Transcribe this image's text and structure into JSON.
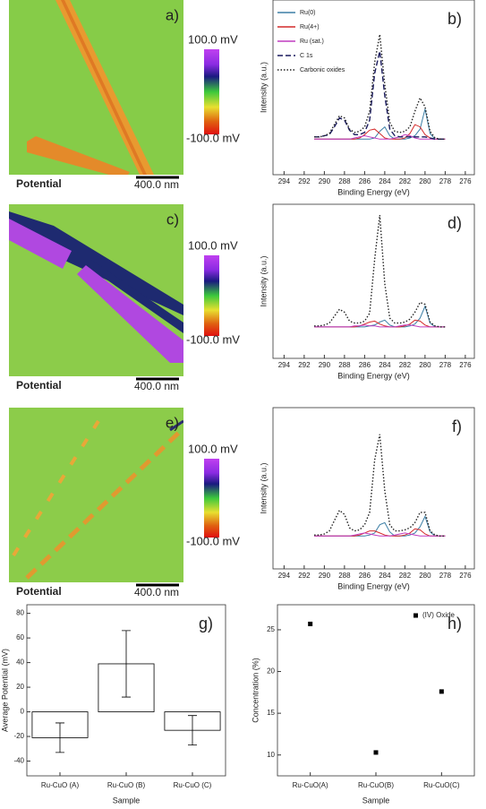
{
  "images": [
    {
      "label": "a)",
      "caption": "Potential",
      "scale_bar": "400.0 nm",
      "colorbar_max": "100.0 mV",
      "colorbar_min": "-100.0 mV"
    },
    {
      "label": "c)",
      "caption": "Potential",
      "scale_bar": "400.0 nm",
      "colorbar_max": "100.0 mV",
      "colorbar_min": "-100.0 mV"
    },
    {
      "label": "e)",
      "caption": "Potential",
      "scale_bar": "400.0 nm",
      "colorbar_max": "100.0 mV",
      "colorbar_min": "-100.0 mV"
    }
  ],
  "chart_data": [
    {
      "type": "line",
      "title": "b)",
      "x_label": "Binding Energy (eV)",
      "y_label": "Intensity (a.u.)",
      "x": [
        291,
        290.5,
        290,
        289.5,
        289,
        288.5,
        288,
        287.5,
        287,
        286.5,
        286,
        285.5,
        285,
        284.5,
        284,
        283.5,
        283,
        282.5,
        282,
        281.5,
        281,
        280.5,
        280,
        279.5,
        279,
        278.5,
        278
      ],
      "xlim": [
        295.1,
        275.1
      ],
      "xticks": [
        294,
        292,
        290,
        288,
        286,
        284,
        282,
        280,
        278,
        276
      ],
      "ylim": [
        -31,
        126
      ],
      "legend": "upper left",
      "series": [
        {
          "name": "Ru(0)",
          "color": "#3c7fa6",
          "style": "solid",
          "values": [
            1,
            1,
            1,
            1,
            1,
            1,
            1,
            1,
            1,
            1,
            1,
            1,
            2,
            8,
            12,
            4,
            1,
            1,
            1,
            2,
            4,
            10,
            28,
            6,
            1,
            1,
            1
          ]
        },
        {
          "name": "Ru(4+)",
          "color": "#d42a2a",
          "style": "solid",
          "values": [
            1,
            1,
            1,
            1,
            1,
            1,
            1,
            1,
            1,
            2,
            5,
            9,
            10,
            6,
            2,
            1,
            1,
            1,
            2,
            6,
            14,
            12,
            5,
            2,
            1,
            1,
            1
          ]
        },
        {
          "name": "Ru (sat.)",
          "color": "#c03cc0",
          "style": "solid",
          "values": [
            1,
            1,
            1,
            1,
            1,
            1,
            1,
            1,
            2,
            3,
            4,
            3,
            2,
            1,
            1,
            1,
            2,
            3,
            5,
            4,
            2,
            1,
            1,
            1,
            1,
            1,
            1
          ]
        },
        {
          "name": "C 1s",
          "color": "#1a1a5e",
          "style": "dashed",
          "values": [
            3,
            3,
            4,
            5,
            12,
            20,
            18,
            9,
            5,
            5,
            7,
            18,
            60,
            80,
            40,
            10,
            4,
            3,
            3,
            3,
            3,
            3,
            3,
            2,
            1,
            1,
            1
          ]
        },
        {
          "name": "Carbonic oxides",
          "color": "#222222",
          "style": "dotted",
          "values": [
            3,
            3,
            4,
            6,
            14,
            22,
            20,
            10,
            7,
            8,
            12,
            26,
            70,
            95,
            50,
            16,
            8,
            7,
            8,
            12,
            26,
            38,
            30,
            8,
            2,
            1,
            1
          ]
        }
      ]
    },
    {
      "type": "line",
      "title": "d)",
      "x_label": "Binding Energy (eV)",
      "y_label": "Intensity (a.u.)",
      "x": [
        291,
        290.5,
        290,
        289.5,
        289,
        288.5,
        288,
        287.5,
        287,
        286.5,
        286,
        285.5,
        285,
        284.5,
        284,
        283.5,
        283,
        282.5,
        282,
        281.5,
        281,
        280.5,
        280,
        279.5,
        279,
        278.5,
        278
      ],
      "xlim": [
        295.1,
        275.1
      ],
      "xticks": [
        294,
        292,
        290,
        288,
        286,
        284,
        282,
        280,
        278,
        276
      ],
      "ylim": [
        -31,
        126
      ],
      "series": [
        {
          "color": "#3c7fa6",
          "style": "solid",
          "values": [
            1,
            1,
            1,
            1,
            1,
            1,
            1,
            1,
            1,
            1,
            1,
            2,
            3,
            6,
            8,
            3,
            1,
            1,
            1,
            2,
            4,
            10,
            22,
            5,
            1,
            1,
            1
          ]
        },
        {
          "color": "#d42a2a",
          "style": "solid",
          "values": [
            1,
            1,
            1,
            1,
            1,
            1,
            1,
            1,
            1,
            2,
            4,
            6,
            7,
            4,
            2,
            1,
            1,
            1,
            2,
            4,
            8,
            7,
            3,
            1,
            1,
            1,
            1
          ]
        },
        {
          "color": "#c03cc0",
          "style": "solid",
          "values": [
            1,
            1,
            1,
            1,
            1,
            1,
            1,
            1,
            2,
            2,
            3,
            2,
            2,
            1,
            1,
            1,
            1,
            2,
            3,
            3,
            2,
            1,
            1,
            1,
            1,
            1,
            1
          ]
        },
        {
          "color": "#222222",
          "style": "dotted",
          "values": [
            2,
            2,
            3,
            5,
            12,
            19,
            16,
            7,
            5,
            5,
            7,
            15,
            70,
            115,
            45,
            10,
            5,
            5,
            6,
            9,
            16,
            26,
            24,
            6,
            2,
            1,
            1
          ]
        }
      ]
    },
    {
      "type": "line",
      "title": "f)",
      "x_label": "Binding Energy (eV)",
      "y_label": "Intensity (a.u.)",
      "x": [
        291,
        290.5,
        290,
        289.5,
        289,
        288.5,
        288,
        287.5,
        287,
        286.5,
        286,
        285.5,
        285,
        284.5,
        284,
        283.5,
        283,
        282.5,
        282,
        281.5,
        281,
        280.5,
        280,
        279.5,
        279,
        278.5,
        278
      ],
      "xlim": [
        295.1,
        275.1
      ],
      "xticks": [
        294,
        292,
        290,
        288,
        286,
        284,
        282,
        280,
        278,
        276
      ],
      "ylim": [
        -31,
        126
      ],
      "series": [
        {
          "color": "#3c7fa6",
          "style": "solid",
          "values": [
            1,
            1,
            1,
            1,
            1,
            1,
            1,
            1,
            1,
            1,
            1,
            2,
            4,
            12,
            14,
            5,
            1,
            1,
            1,
            2,
            4,
            10,
            20,
            5,
            1,
            1,
            1
          ]
        },
        {
          "color": "#d42a2a",
          "style": "solid",
          "values": [
            1,
            1,
            1,
            1,
            1,
            1,
            1,
            1,
            1,
            2,
            4,
            6,
            6,
            4,
            2,
            1,
            1,
            1,
            2,
            4,
            8,
            7,
            3,
            1,
            1,
            1,
            1
          ]
        },
        {
          "color": "#c03cc0",
          "style": "solid",
          "values": [
            1,
            1,
            1,
            1,
            1,
            1,
            1,
            1,
            2,
            3,
            4,
            3,
            2,
            1,
            1,
            1,
            2,
            3,
            4,
            3,
            2,
            1,
            1,
            1,
            1,
            1,
            1
          ]
        },
        {
          "color": "#222222",
          "style": "dotted",
          "values": [
            2,
            2,
            3,
            6,
            16,
            26,
            22,
            9,
            6,
            7,
            12,
            24,
            75,
            100,
            45,
            12,
            6,
            6,
            7,
            9,
            14,
            24,
            24,
            6,
            2,
            1,
            1
          ]
        }
      ]
    },
    {
      "type": "bar",
      "title": "g)",
      "x_label": "Sample",
      "y_label": "Average Potential (mV)",
      "categories": [
        "Ru-CuO (A)",
        "Ru-CuO (B)",
        "Ru-CuO (C)"
      ],
      "values": [
        -21,
        39,
        -15
      ],
      "errors": [
        12,
        27,
        12
      ],
      "color": "#ffffff",
      "ylim": [
        -52,
        87
      ],
      "yticks": [
        -40,
        -20,
        0,
        20,
        40,
        60,
        80
      ]
    },
    {
      "type": "scatter",
      "title": "h)",
      "x_label": "Sample",
      "y_label": "Concentration (%)",
      "categories": [
        "Ru-CuO(A)",
        "Ru-CuO(B)",
        "Ru-CuO(C)"
      ],
      "legend": "upper right",
      "series": [
        {
          "name": "(IV) Oxide",
          "color": "#000000",
          "values": [
            25.7,
            10.3,
            17.6
          ]
        }
      ],
      "ylim": [
        7.5,
        28
      ],
      "yticks": [
        10,
        15,
        20,
        25
      ]
    }
  ]
}
